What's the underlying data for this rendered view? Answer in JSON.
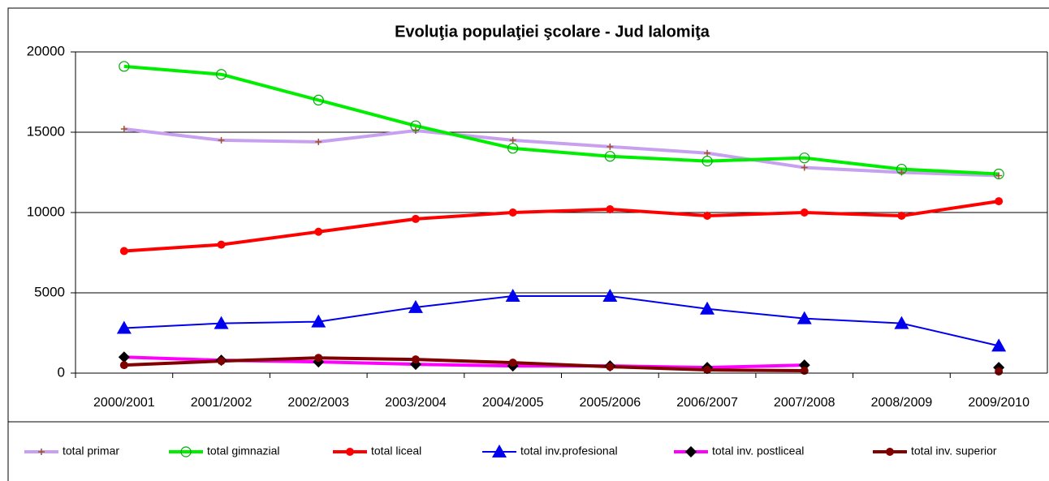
{
  "chart_data": {
    "type": "line",
    "title": "Evoluţia populaţiei şcolare - Jud Ialomiţa",
    "categories": [
      "2000/2001",
      "2001/2002",
      "2002/2003",
      "2003/2004",
      "2004/2005",
      "2005/2006",
      "2006/2007",
      "2007/2008",
      "2008/2009",
      "2009/2010"
    ],
    "ylim": [
      0,
      20000
    ],
    "yticks": [
      0,
      5000,
      10000,
      15000,
      20000
    ],
    "grid": true,
    "legend": "bottom",
    "series": [
      {
        "name": "total primar",
        "color": "#c8a0f0",
        "marker": "plus",
        "marker_color": "#a0522d",
        "values": [
          15200,
          14500,
          14400,
          15100,
          14500,
          14100,
          13700,
          12800,
          12500,
          12300
        ]
      },
      {
        "name": "total gimnazial",
        "color": "#00ee00",
        "marker": "circle",
        "marker_color": "#00aa00",
        "values": [
          19100,
          18600,
          17000,
          15400,
          14000,
          13500,
          13200,
          13400,
          12700,
          12400
        ]
      },
      {
        "name": "total liceal",
        "color": "#ff0000",
        "marker": "dot",
        "marker_color": "#ff0000",
        "values": [
          7600,
          8000,
          8800,
          9600,
          10000,
          10200,
          9800,
          10000,
          9800,
          10700
        ]
      },
      {
        "name": "total inv.profesional",
        "color": "#0000ee",
        "marker": "triangle",
        "marker_color": "#0000ee",
        "values": [
          2800,
          3100,
          3200,
          4100,
          4800,
          4800,
          4000,
          3400,
          3100,
          1700
        ]
      },
      {
        "name": "total inv. postliceal",
        "color": "#ff00ff",
        "marker": "diamond",
        "marker_color": "#000000",
        "values": [
          1000,
          800,
          700,
          550,
          450,
          450,
          350,
          500,
          null,
          350
        ]
      },
      {
        "name": "total inv. superior",
        "color": "#800000",
        "marker": "dot",
        "marker_color": "#800000",
        "values": [
          500,
          750,
          950,
          850,
          650,
          400,
          200,
          150,
          null,
          100
        ]
      }
    ]
  }
}
